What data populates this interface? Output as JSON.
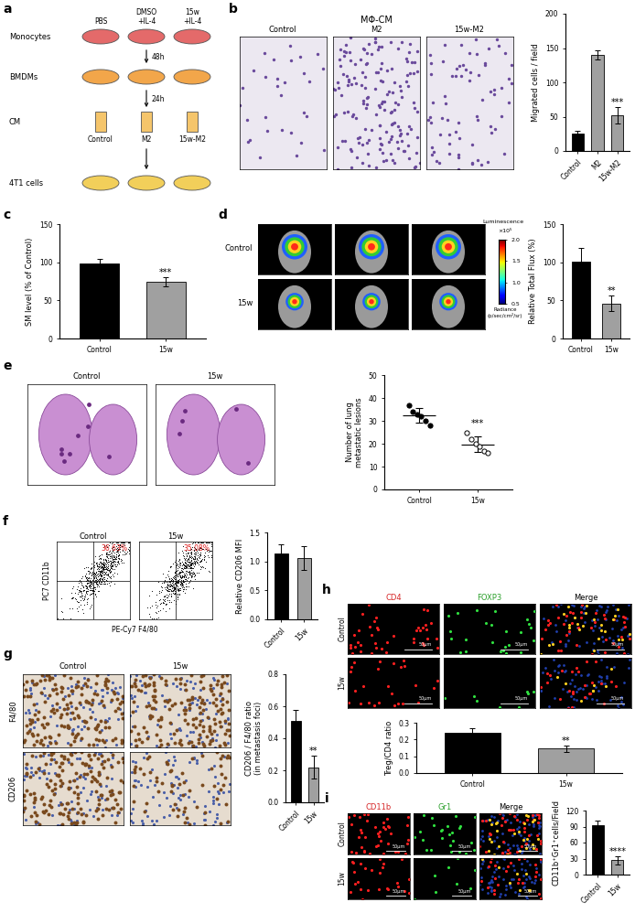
{
  "panel_labels": [
    "a",
    "b",
    "c",
    "d",
    "e",
    "f",
    "g",
    "h",
    "i"
  ],
  "schematic": {
    "row_labels": [
      "Monocytes",
      "BMDMs",
      "CM",
      "4T1 cells"
    ],
    "treatments": [
      "PBS",
      "DMSO\n+IL-4",
      "15w\n+IL-4"
    ],
    "steps": [
      "48h",
      "24h"
    ],
    "cm_labels": [
      "Control",
      "M2",
      "15w-M2"
    ]
  },
  "images": {
    "b": {
      "title": "MΦ-CM",
      "columns": [
        "Control",
        "M2",
        "15w-M2"
      ]
    },
    "d": {
      "rows": [
        "Control",
        "15w"
      ],
      "colorbar": {
        "title": "Luminescence",
        "multiplier": "×10⁵",
        "label": "Radiance\n(p/sec/cm²/sr)",
        "ylim": [
          0.5,
          2.0
        ],
        "yticks": [
          {
            "value": 0.5,
            "label": "0.5"
          },
          {
            "value": 1.0,
            "label": "1.0"
          },
          {
            "value": 1.5,
            "label": "1.5"
          },
          {
            "value": 2.0,
            "label": "2.0"
          }
        ]
      }
    },
    "e": {
      "columns": [
        "Control",
        "15w"
      ]
    },
    "f": {
      "columns": [
        "Control",
        "15w"
      ],
      "gate_labels": [
        "36.63%",
        "35.08%"
      ],
      "x_label": "PE-Cy7 F4/80",
      "y_label": "PC7 CD11b"
    },
    "g": {
      "columns": [
        "Control",
        "15w"
      ],
      "rows": [
        "F4/80",
        "CD206"
      ]
    },
    "h": {
      "columns": [
        "CD4",
        "FOXP3",
        "Merge"
      ],
      "rows": [
        "Control",
        "15w"
      ],
      "scale_bar": "50μm"
    },
    "i": {
      "columns": [
        "CD11b",
        "Gr1",
        "Merge"
      ],
      "rows": [
        "Control",
        "15w"
      ],
      "scale_bar": "50μm"
    }
  },
  "chart_data": [
    {
      "panel": "b",
      "type": "bar",
      "y_label": "Migrated cells / field",
      "categories": [
        "Control",
        "M2",
        "15w-M2"
      ],
      "values": [
        25,
        140,
        52
      ],
      "errors": [
        4,
        7,
        12
      ],
      "colors": [
        "#000000",
        "#a0a0a0",
        "#a0a0a0"
      ],
      "ylim": [
        0,
        200
      ],
      "yticks": [
        0,
        50,
        100,
        150,
        200
      ],
      "annotation": "***"
    },
    {
      "panel": "c",
      "type": "bar",
      "y_label": "SM level (% of Control)",
      "categories": [
        "Control",
        "15w"
      ],
      "values": [
        98,
        74
      ],
      "errors": [
        6,
        6
      ],
      "colors": [
        "#000000",
        "#a0a0a0"
      ],
      "ylim": [
        0,
        150
      ],
      "yticks": [
        0,
        50,
        100,
        150
      ],
      "annotation": "***"
    },
    {
      "panel": "d",
      "type": "bar",
      "y_label": "Relative Total Flux (%)",
      "categories": [
        "Control",
        "15w"
      ],
      "values": [
        101,
        46
      ],
      "errors": [
        18,
        10
      ],
      "colors": [
        "#000000",
        "#a0a0a0"
      ],
      "ylim": [
        0,
        150
      ],
      "yticks": [
        0,
        50,
        100,
        150
      ],
      "annotation": "**"
    },
    {
      "panel": "e",
      "type": "scatter",
      "y_label": "Number of lung\nmetastatic lesions",
      "categories": [
        "Control",
        "15w"
      ],
      "points": [
        [
          37,
          34,
          33,
          32,
          30,
          28
        ],
        [
          25,
          22,
          20,
          19,
          17,
          16
        ]
      ],
      "values": [
        32.3,
        19.8
      ],
      "errors": [
        3.2,
        3.3
      ],
      "ylim": [
        0,
        50
      ],
      "yticks": [
        0,
        10,
        20,
        30,
        40,
        50
      ],
      "annotation": "***"
    },
    {
      "panel": "f",
      "type": "bar",
      "y_label": "Relative CD206 MFI",
      "categories": [
        "Control",
        "15w"
      ],
      "values": [
        1.13,
        1.06
      ],
      "errors": [
        0.17,
        0.2
      ],
      "colors": [
        "#000000",
        "#a0a0a0"
      ],
      "ylim": [
        0,
        1.5
      ],
      "yticks": [
        {
          "value": 0,
          "label": "0.0"
        },
        {
          "value": 0.5,
          "label": "0.5"
        },
        {
          "value": 1.0,
          "label": "1.0"
        },
        {
          "value": 1.5,
          "label": "1.5"
        }
      ]
    },
    {
      "panel": "g",
      "type": "bar",
      "y_label": "CD206 / F4/80 ratio\n(in metastasis foci)",
      "categories": [
        "Control",
        "15w"
      ],
      "values": [
        0.51,
        0.22
      ],
      "errors": [
        0.07,
        0.07
      ],
      "colors": [
        "#000000",
        "#a0a0a0"
      ],
      "ylim": [
        0,
        0.8
      ],
      "yticks": [
        {
          "value": 0,
          "label": "0.0"
        },
        {
          "value": 0.2,
          "label": "0.2"
        },
        {
          "value": 0.4,
          "label": "0.4"
        },
        {
          "value": 0.6,
          "label": "0.6"
        },
        {
          "value": 0.8,
          "label": "0.8"
        }
      ],
      "annotation": "**"
    },
    {
      "panel": "h",
      "type": "bar",
      "y_label": "Treg/CD4 ratio",
      "categories": [
        "Control",
        "15w"
      ],
      "values": [
        0.24,
        0.145
      ],
      "errors": [
        0.025,
        0.02
      ],
      "colors": [
        "#000000",
        "#a0a0a0"
      ],
      "ylim": [
        0,
        0.3
      ],
      "yticks": [
        {
          "value": 0,
          "label": "0.0"
        },
        {
          "value": 0.1,
          "label": "0.1"
        },
        {
          "value": 0.2,
          "label": "0.2"
        },
        {
          "value": 0.3,
          "label": "0.3"
        }
      ],
      "annotation": "**"
    },
    {
      "panel": "i",
      "type": "bar",
      "y_label": "CD11b⁺Gr1⁺cells/Field",
      "categories": [
        "Control",
        "15w"
      ],
      "values": [
        92,
        27
      ],
      "errors": [
        10,
        8
      ],
      "colors": [
        "#000000",
        "#a0a0a0"
      ],
      "ylim": [
        0,
        120
      ],
      "yticks": [
        0,
        30,
        60,
        90,
        120
      ],
      "annotation": "****"
    }
  ]
}
